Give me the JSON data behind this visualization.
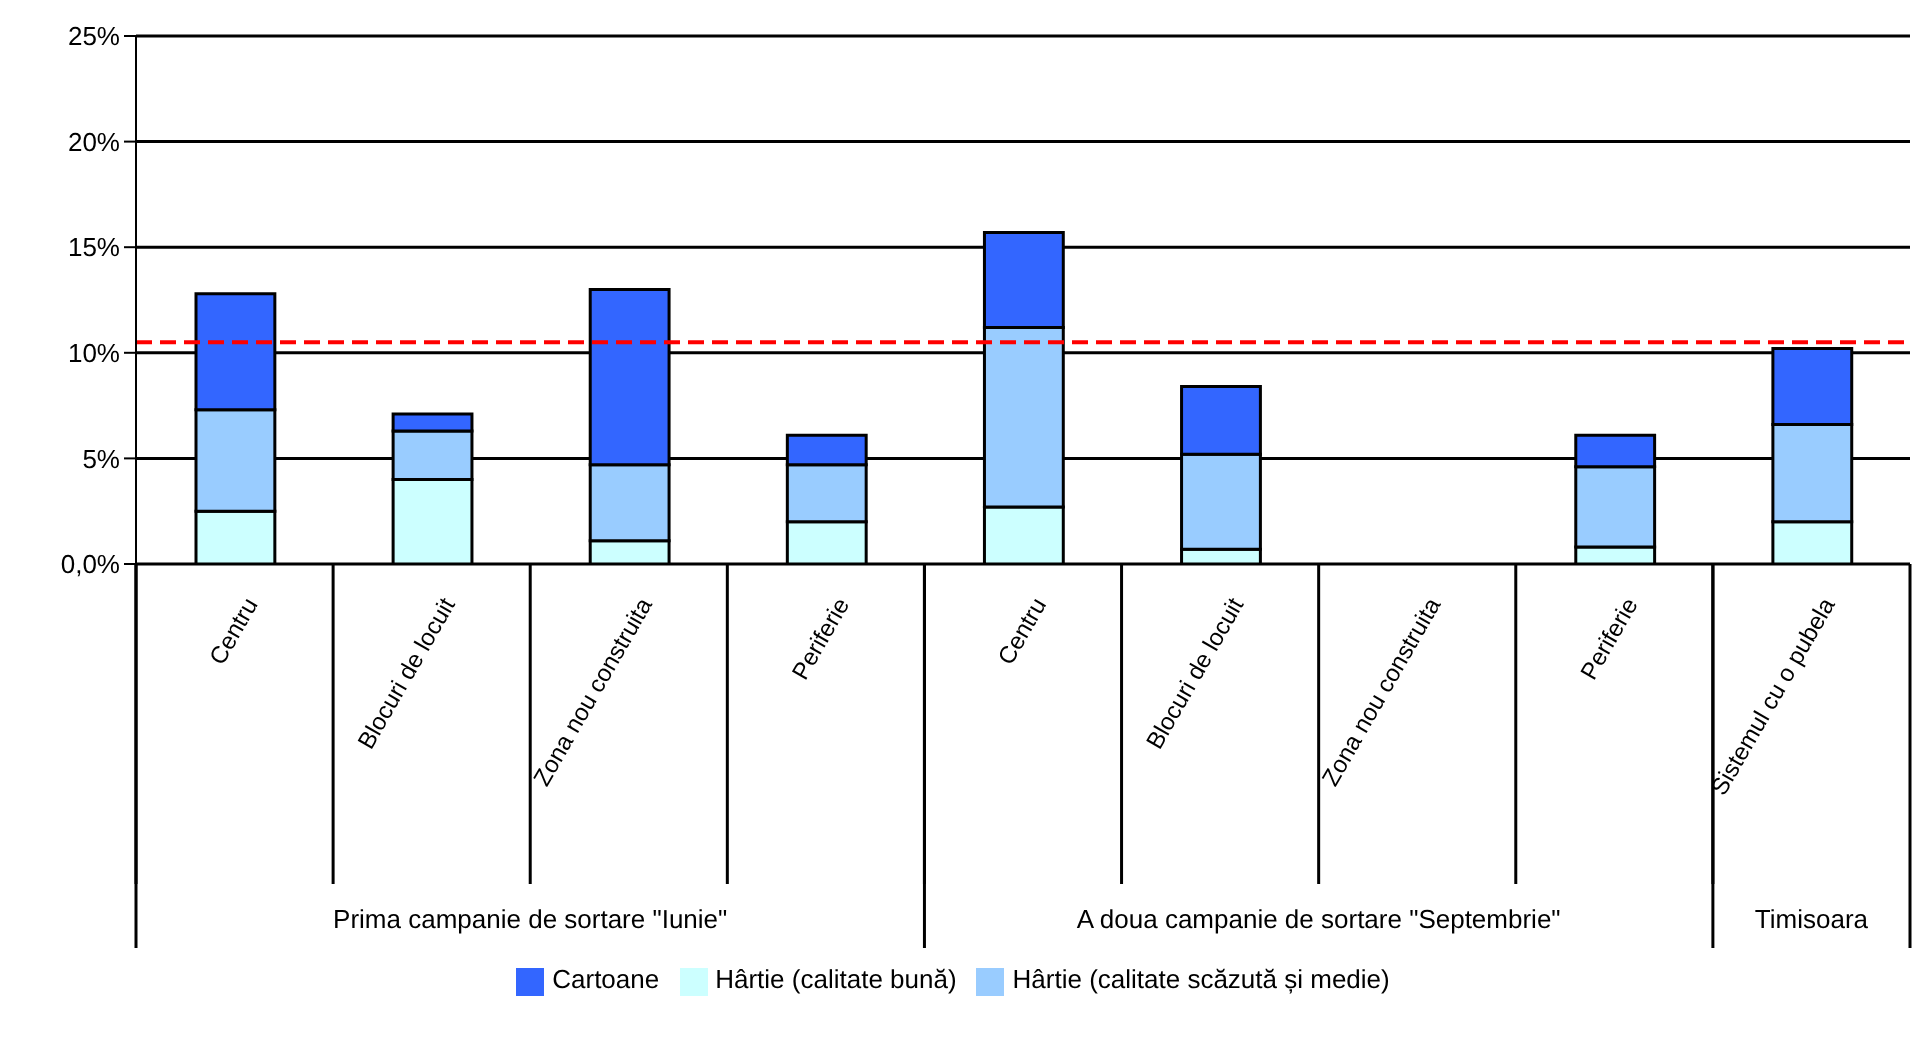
{
  "chart_data": {
    "type": "bar",
    "stacked": true,
    "categories": [
      "Centru",
      "Blocuri de locuit",
      "Zona nou construita",
      "Periferie",
      "Centru",
      "Blocuri de locuit",
      "Zona nou construita",
      "Periferie",
      "Sistemul cu o pubela"
    ],
    "series": [
      {
        "name": "Hârtie (calitate bună)",
        "color": "#ccffff",
        "values": [
          2.5,
          4.0,
          1.1,
          2.0,
          2.7,
          0.7,
          null,
          0.8,
          2.0
        ]
      },
      {
        "name": "Hârtie (calitate scăzută și medie)",
        "color": "#99ccff",
        "values": [
          4.8,
          2.3,
          3.6,
          2.7,
          8.5,
          4.5,
          null,
          3.8,
          4.6
        ]
      },
      {
        "name": "Cartoane",
        "color": "#3366ff",
        "values": [
          5.5,
          0.8,
          8.3,
          1.4,
          4.5,
          3.2,
          null,
          1.5,
          3.6
        ]
      }
    ],
    "ylim": [
      0,
      25
    ],
    "yticks": [
      {
        "value": 0,
        "label": "0,0%"
      },
      {
        "value": 5,
        "label": "5%"
      },
      {
        "value": 10,
        "label": "10%"
      },
      {
        "value": 15,
        "label": "15%"
      },
      {
        "value": 20,
        "label": "20%"
      },
      {
        "value": 25,
        "label": "25%"
      }
    ],
    "grid": "y",
    "legend": "bottom",
    "ref_lines": [
      {
        "axis": "y",
        "value": 10.5,
        "color": "#ff0000",
        "line_style": "dashed"
      }
    ],
    "annotations": [
      "Prima campanie de sortare \"Iunie\"",
      "A doua campanie de sortare \"Septembrie\"",
      "Timisoara"
    ]
  }
}
